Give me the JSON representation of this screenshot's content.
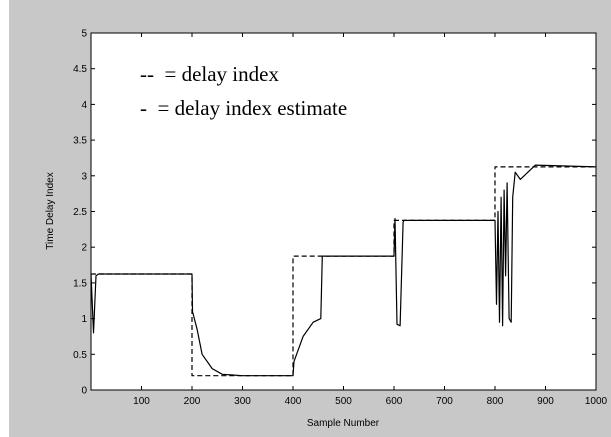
{
  "chart_data": {
    "type": "line",
    "title": "",
    "xlabel": "Sample Number",
    "ylabel": "Time Delay Index",
    "xlim": [
      0,
      1000
    ],
    "ylim": [
      0,
      5
    ],
    "xticks": [
      "100",
      "200",
      "300",
      "400",
      "500",
      "600",
      "700",
      "800",
      "900",
      "1000"
    ],
    "yticks": [
      "0",
      "0.5",
      "1",
      "1.5",
      "2",
      "2.5",
      "3",
      "3.5",
      "4",
      "4.5",
      "5"
    ],
    "grid": false,
    "legend_text": [
      "--  = delay index",
      "-  = delay index estimate"
    ],
    "colors": {
      "figure_bg": "#c8c8c8",
      "axes_bg": "#ffffff",
      "line": "#000000"
    },
    "series": [
      {
        "name": "delay index",
        "style": "dashed",
        "x": [
          0,
          200,
          200,
          400,
          400,
          600,
          600,
          800,
          800,
          1000
        ],
        "y": [
          1.625,
          1.625,
          0.2,
          0.2,
          1.875,
          1.875,
          2.375,
          2.375,
          3.125,
          3.125
        ]
      },
      {
        "name": "delay index estimate",
        "style": "solid",
        "x": [
          0,
          5,
          10,
          15,
          20,
          200,
          201,
          210,
          220,
          240,
          260,
          280,
          300,
          400,
          402,
          420,
          440,
          455,
          458,
          600,
          602,
          606,
          612,
          618,
          620,
          800,
          803,
          806,
          809,
          812,
          815,
          818,
          821,
          824,
          828,
          832,
          835,
          840,
          850,
          880,
          1000
        ],
        "y": [
          1.625,
          0.8,
          1.6,
          1.625,
          1.625,
          1.625,
          1.1,
          0.85,
          0.5,
          0.3,
          0.22,
          0.21,
          0.2,
          0.2,
          0.4,
          0.75,
          0.95,
          1.0,
          1.875,
          1.875,
          2.4,
          0.92,
          0.9,
          2.35,
          2.375,
          2.375,
          1.2,
          2.5,
          0.95,
          2.7,
          0.9,
          2.8,
          1.6,
          2.9,
          1.0,
          0.95,
          2.7,
          3.05,
          2.95,
          3.15,
          3.125
        ]
      }
    ]
  }
}
